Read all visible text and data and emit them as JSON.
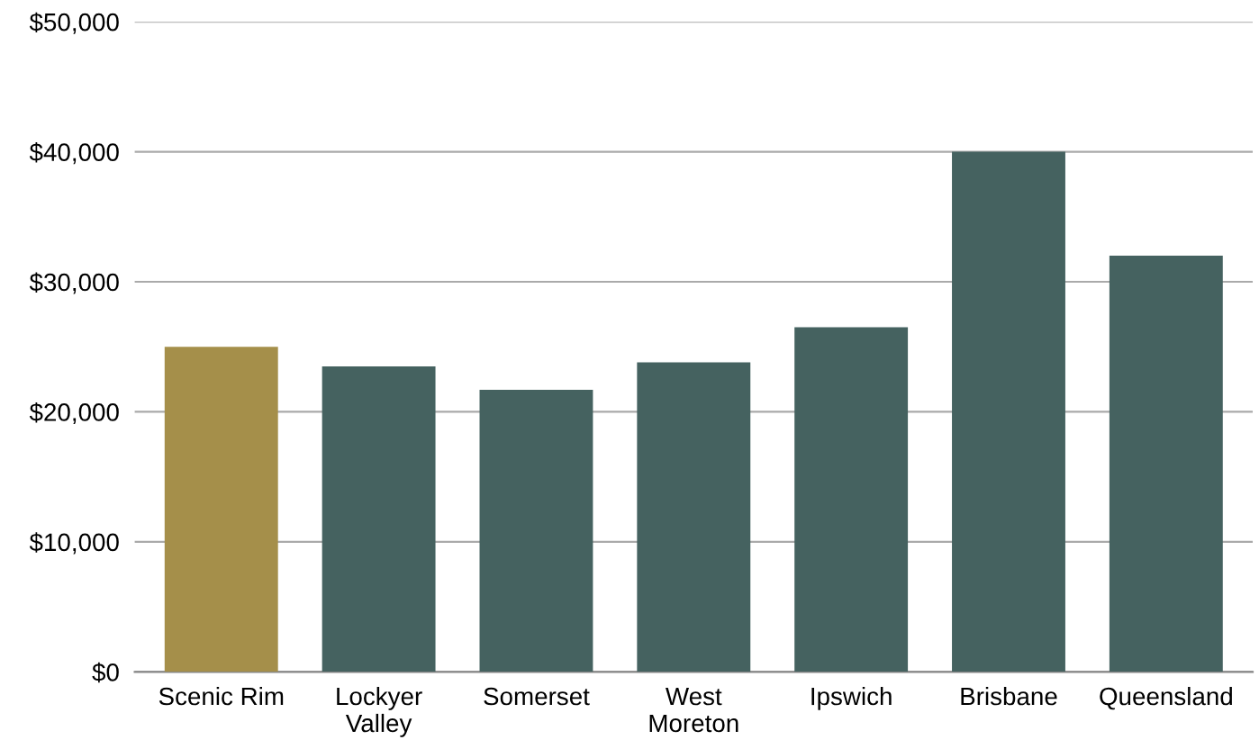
{
  "chart_data": {
    "type": "bar",
    "categories": [
      "Scenic Rim",
      "Lockyer\nValley",
      "Somerset",
      "West\nMoreton",
      "Ipswich",
      "Brisbane",
      "Queensland"
    ],
    "values": [
      25000,
      23500,
      21700,
      23800,
      26500,
      40000,
      32000
    ],
    "colors": [
      "#a58f4a",
      "#456260",
      "#456260",
      "#456260",
      "#456260",
      "#456260",
      "#456260"
    ],
    "ylim": [
      0,
      50000
    ],
    "yticks": [
      {
        "value": 0,
        "label": "$0"
      },
      {
        "value": 10000,
        "label": "$10,000"
      },
      {
        "value": 20000,
        "label": "$20,000"
      },
      {
        "value": 30000,
        "label": "$30,000"
      },
      {
        "value": 40000,
        "label": "$40,000"
      },
      {
        "value": 50000,
        "label": "$50,000"
      }
    ],
    "grid": "y"
  }
}
